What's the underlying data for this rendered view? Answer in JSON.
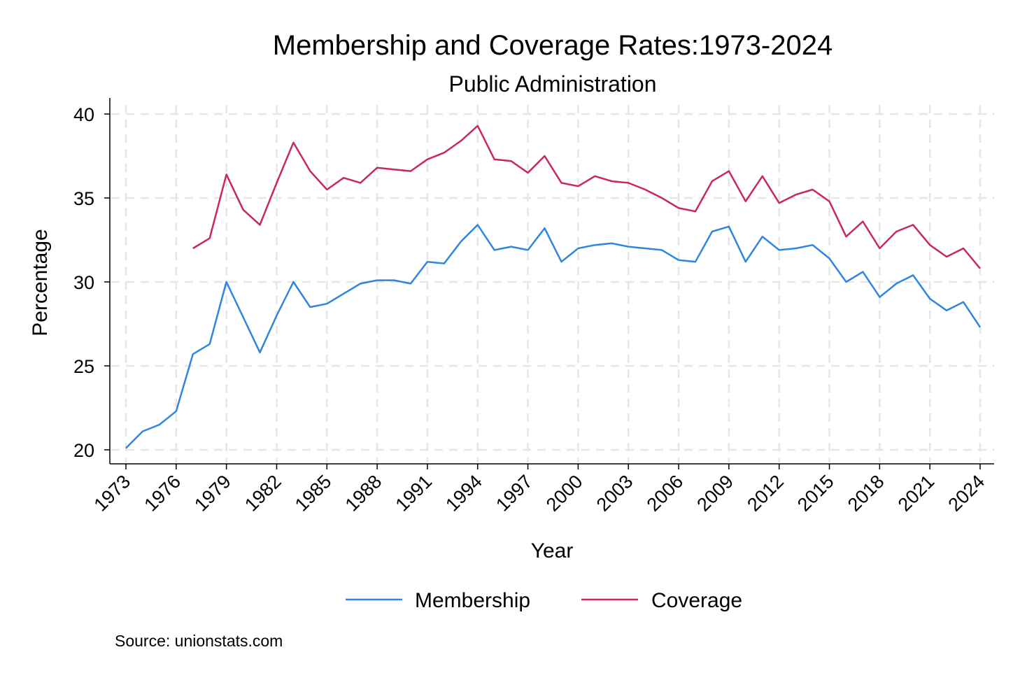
{
  "chart_data": {
    "type": "line",
    "title": "Membership and Coverage Rates:1973-2024",
    "subtitle": "Public Administration",
    "xlabel": "Year",
    "ylabel": "Percentage",
    "xlim": [
      1973,
      2024
    ],
    "ylim": [
      20,
      40
    ],
    "x_ticks": [
      1973,
      1976,
      1979,
      1982,
      1985,
      1988,
      1991,
      1994,
      1997,
      2000,
      2003,
      2006,
      2009,
      2012,
      2015,
      2018,
      2021,
      2024
    ],
    "y_ticks": [
      20,
      25,
      30,
      35,
      40
    ],
    "grid": true,
    "legend_position": "bottom",
    "note": "Source: unionstats.com",
    "x": [
      1973,
      1974,
      1975,
      1976,
      1977,
      1978,
      1979,
      1980,
      1981,
      1982,
      1983,
      1984,
      1985,
      1986,
      1987,
      1988,
      1989,
      1990,
      1991,
      1992,
      1993,
      1994,
      1995,
      1996,
      1997,
      1998,
      1999,
      2000,
      2001,
      2002,
      2003,
      2004,
      2005,
      2006,
      2007,
      2008,
      2009,
      2010,
      2011,
      2012,
      2013,
      2014,
      2015,
      2016,
      2017,
      2018,
      2019,
      2020,
      2021,
      2022,
      2023,
      2024
    ],
    "series": [
      {
        "name": "Membership",
        "color": "#2e86de",
        "values": [
          20.1,
          21.1,
          21.5,
          22.3,
          25.7,
          26.3,
          30.0,
          27.9,
          25.8,
          28.0,
          30.0,
          28.5,
          28.7,
          29.3,
          29.9,
          30.1,
          30.1,
          29.9,
          31.2,
          31.1,
          32.4,
          33.4,
          31.9,
          32.1,
          31.9,
          33.2,
          31.2,
          32.0,
          32.2,
          32.3,
          32.1,
          32.0,
          31.9,
          31.3,
          31.2,
          33.0,
          33.3,
          31.2,
          32.7,
          31.9,
          32.0,
          32.2,
          31.4,
          30.0,
          30.6,
          29.1,
          29.9,
          30.4,
          29.0,
          28.3,
          28.8,
          27.3
        ]
      },
      {
        "name": "Coverage",
        "color": "#c8285e",
        "values": [
          null,
          null,
          null,
          null,
          32.0,
          32.6,
          36.4,
          34.3,
          33.4,
          35.9,
          38.3,
          36.6,
          35.5,
          36.2,
          35.9,
          36.8,
          36.7,
          36.6,
          37.3,
          37.7,
          38.4,
          39.3,
          37.3,
          37.2,
          36.5,
          37.5,
          35.9,
          35.7,
          36.3,
          36.0,
          35.9,
          35.5,
          35.0,
          34.4,
          34.2,
          36.0,
          36.6,
          34.8,
          36.3,
          34.7,
          35.2,
          35.5,
          34.8,
          32.7,
          33.6,
          32.0,
          33.0,
          33.4,
          32.2,
          31.5,
          32.0,
          30.8
        ]
      }
    ]
  }
}
